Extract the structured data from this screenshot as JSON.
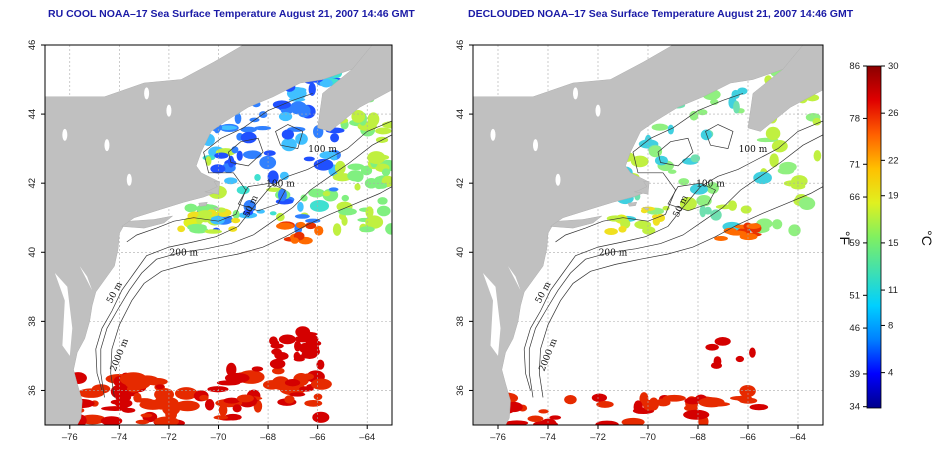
{
  "panels": [
    {
      "id": "left",
      "title": "RU COOL NOAA–17 Sea Surface Temperature August 21, 2007 14:46 GMT",
      "cloud_masked": false
    },
    {
      "id": "right",
      "title": "DECLOUDED NOAA–17 Sea Surface Temperature August 21, 2007 14:46 GMT",
      "cloud_masked": true
    }
  ],
  "map": {
    "lon_range": [
      -77,
      -63
    ],
    "lat_range": [
      35,
      46
    ],
    "x_ticks": [
      "–76",
      "–74",
      "–72",
      "–70",
      "–68",
      "–66",
      "–64"
    ],
    "x_tick_values": [
      -76,
      -74,
      -72,
      -70,
      -68,
      -66,
      -64
    ],
    "y_ticks": [
      "36",
      "38",
      "40",
      "42",
      "44",
      "46"
    ],
    "y_tick_values": [
      36,
      38,
      40,
      42,
      44,
      46
    ],
    "grid": "dotted",
    "land_color": "#c0c0c0",
    "isobath_labels": [
      "50 m",
      "100 m",
      "200 m",
      "2000 m"
    ]
  },
  "colorbar": {
    "unit_left": "°F",
    "unit_right": "°C",
    "fahrenheit_ticks": [
      "86",
      "78",
      "71",
      "66",
      "59",
      "51",
      "46",
      "39",
      "34"
    ],
    "fahrenheit_values": [
      86,
      78,
      71,
      66,
      59,
      51,
      46,
      39,
      34
    ],
    "celsius_ticks": [
      "30",
      "26",
      "22",
      "19",
      "15",
      "11",
      "8",
      "4"
    ],
    "celsius_values": [
      30,
      26,
      22,
      19,
      15,
      11,
      8,
      4
    ],
    "range_c": [
      1,
      30
    ],
    "colors": [
      "#00008b",
      "#0000ff",
      "#0080ff",
      "#00d0ff",
      "#40e0b0",
      "#80f060",
      "#e0f020",
      "#ffc000",
      "#ff6000",
      "#e00000",
      "#8b0000"
    ]
  }
}
